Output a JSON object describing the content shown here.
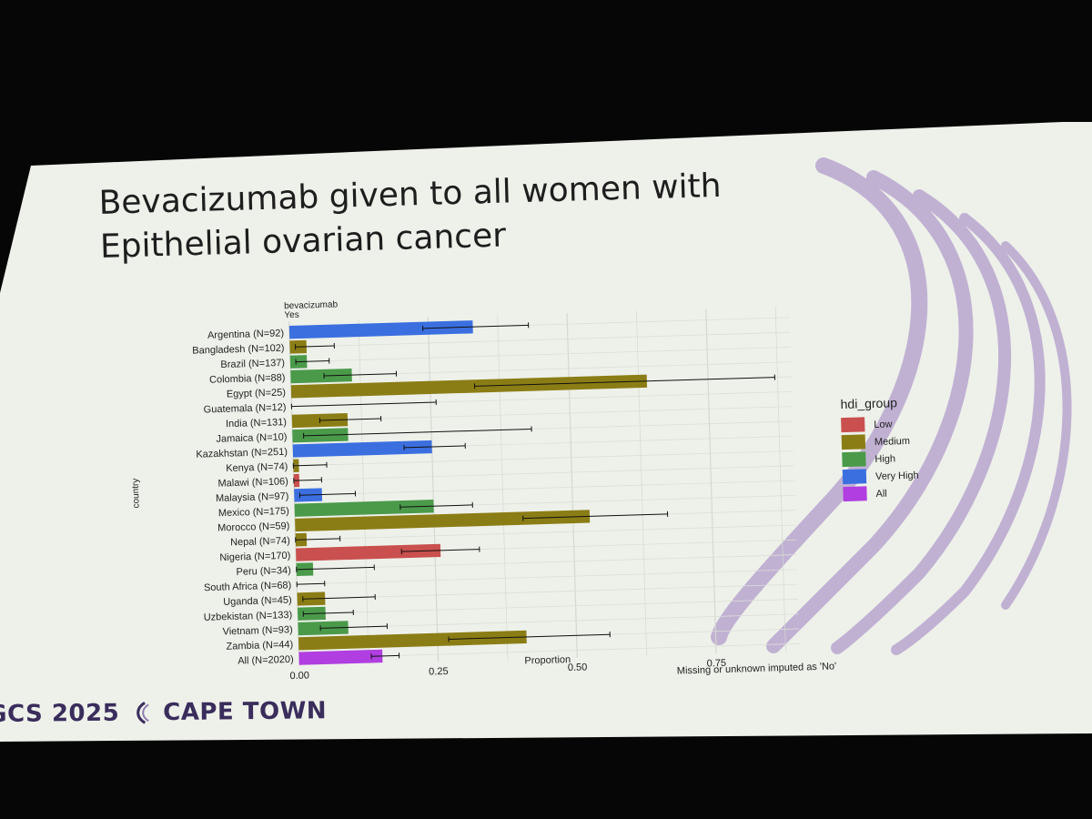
{
  "slide": {
    "title": "Bevacizumab given to all women with\nEpithelial ovarian cancer",
    "footer_left": "GCS 2025",
    "footer_right": "CAPE TOWN",
    "colors": {
      "screen": "#eef1ea",
      "title": "#1e1e1e",
      "footer": "#3a2d5c",
      "swoosh": "#b9a6cf"
    }
  },
  "chart_data": {
    "type": "bar",
    "orientation": "horizontal",
    "facet_label": "bevacizumab",
    "facet_sublabel": "Yes",
    "xlabel": "Proportion",
    "ylabel": "country",
    "caption": "Missing or unknown imputed as 'No'",
    "xlim": [
      0,
      0.9
    ],
    "xticks": [
      0.0,
      0.25,
      0.5,
      0.75
    ],
    "xtick_labels": [
      "0.00",
      "0.25",
      "0.50",
      "0.75"
    ],
    "grid": true,
    "legend": {
      "title": "hdi_group",
      "placement": "right",
      "items": [
        {
          "label": "Low",
          "color": "#c9504e"
        },
        {
          "label": "Medium",
          "color": "#8b7d15"
        },
        {
          "label": "High",
          "color": "#4a9a4a"
        },
        {
          "label": "Very High",
          "color": "#3b6fe0"
        },
        {
          "label": "All",
          "color": "#b03ee0"
        }
      ]
    },
    "categories": [
      "Argentina (N=92)",
      "Bangladesh (N=102)",
      "Brazil (N=137)",
      "Colombia (N=88)",
      "Egypt (N=25)",
      "Guatemala (N=12)",
      "India (N=131)",
      "Jamaica (N=10)",
      "Kazakhstan (N=251)",
      "Kenya (N=74)",
      "Malawi (N=106)",
      "Malaysia (N=97)",
      "Mexico (N=175)",
      "Morocco (N=59)",
      "Nepal (N=74)",
      "Nigeria (N=170)",
      "Peru (N=34)",
      "South Africa (N=68)",
      "Uganda (N=45)",
      "Uzbekistan (N=133)",
      "Vietnam (N=93)",
      "Zambia (N=44)",
      "All (N=2020)"
    ],
    "groups": [
      "Very High",
      "Medium",
      "High",
      "High",
      "Medium",
      "Medium",
      "Medium",
      "High",
      "Very High",
      "Medium",
      "Low",
      "Very High",
      "High",
      "Medium",
      "Medium",
      "Low",
      "High",
      "High",
      "Medium",
      "High",
      "High",
      "Medium",
      "All"
    ],
    "values": [
      0.33,
      0.03,
      0.03,
      0.11,
      0.64,
      0.0,
      0.1,
      0.1,
      0.25,
      0.01,
      0.01,
      0.05,
      0.25,
      0.53,
      0.02,
      0.26,
      0.03,
      0.0,
      0.05,
      0.05,
      0.09,
      0.41,
      0.15
    ],
    "error_low": [
      0.24,
      0.01,
      0.01,
      0.06,
      0.33,
      0.0,
      0.05,
      0.02,
      0.2,
      0.0,
      0.0,
      0.01,
      0.19,
      0.41,
      0.0,
      0.19,
      0.0,
      0.0,
      0.01,
      0.01,
      0.04,
      0.27,
      0.13
    ],
    "error_high": [
      0.43,
      0.08,
      0.07,
      0.19,
      0.87,
      0.26,
      0.16,
      0.43,
      0.31,
      0.06,
      0.05,
      0.11,
      0.32,
      0.67,
      0.08,
      0.33,
      0.14,
      0.05,
      0.14,
      0.1,
      0.16,
      0.56,
      0.18
    ]
  }
}
